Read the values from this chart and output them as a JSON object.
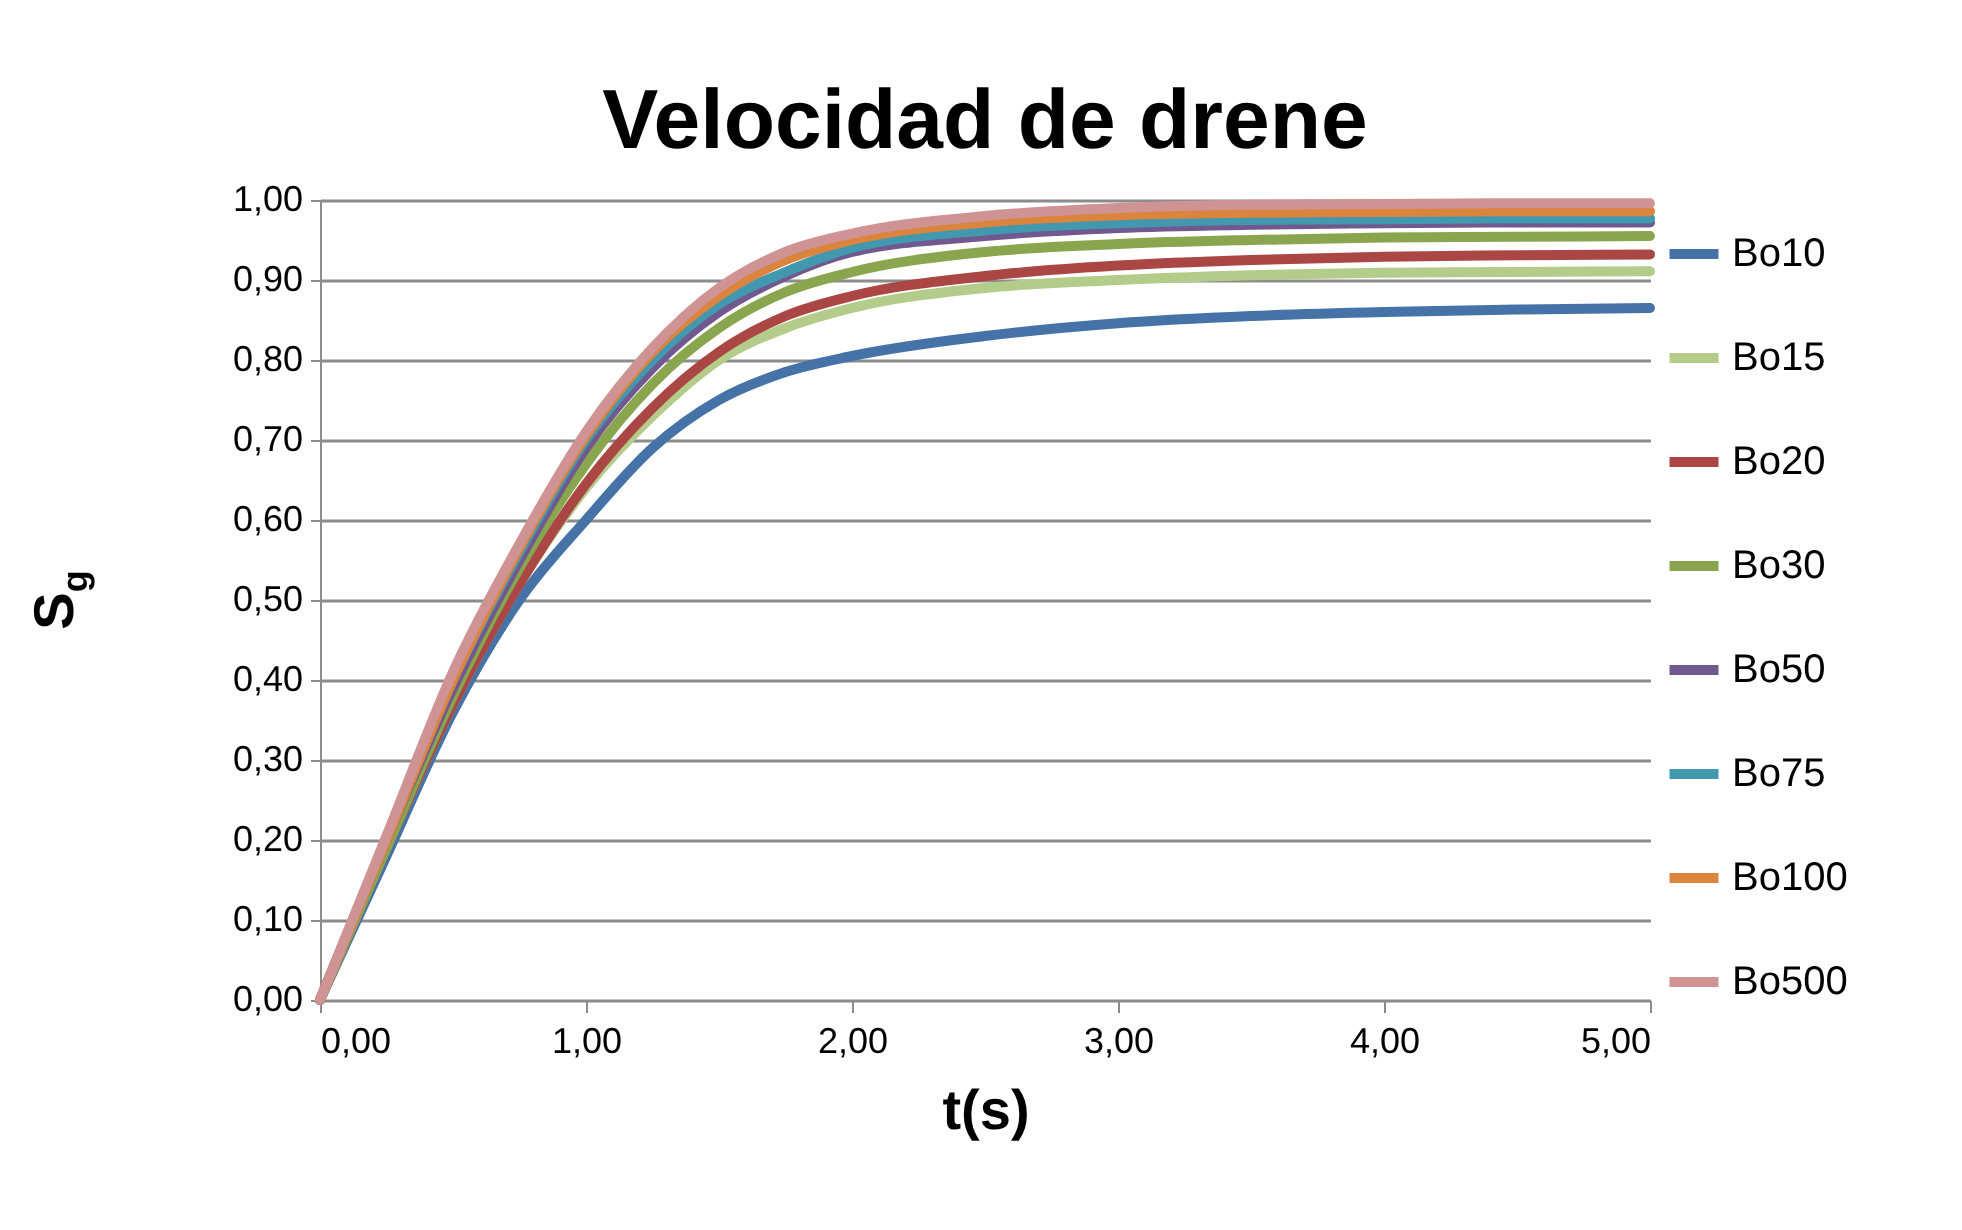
{
  "chart_data": {
    "type": "line",
    "title": "Velocidad de drene",
    "xlabel": "t(s)",
    "ylabel": "S$_{g}$",
    "x": [
      0,
      0.25,
      0.5,
      0.75,
      1,
      1.25,
      1.5,
      1.75,
      2,
      2.5,
      3,
      3.5,
      4,
      4.5,
      5
    ],
    "series": [
      {
        "name": "Bo10",
        "color": "#4572a7",
        "values": [
          0,
          0.18,
          0.36,
          0.5,
          0.6,
          0.69,
          0.75,
          0.785,
          0.805,
          0.83,
          0.846,
          0.855,
          0.86,
          0.863,
          0.865
        ]
      },
      {
        "name": "Bo15",
        "color": "#b3cc8a",
        "values": [
          0,
          0.19,
          0.37,
          0.52,
          0.64,
          0.73,
          0.8,
          0.84,
          0.865,
          0.89,
          0.9,
          0.906,
          0.909,
          0.91,
          0.911
        ]
      },
      {
        "name": "Bo20",
        "color": "#aa4643",
        "values": [
          0,
          0.19,
          0.37,
          0.52,
          0.645,
          0.74,
          0.81,
          0.855,
          0.88,
          0.905,
          0.918,
          0.925,
          0.929,
          0.931,
          0.932
        ]
      },
      {
        "name": "Bo30",
        "color": "#89a54e",
        "values": [
          0,
          0.19,
          0.38,
          0.54,
          0.67,
          0.77,
          0.84,
          0.885,
          0.91,
          0.935,
          0.945,
          0.95,
          0.953,
          0.954,
          0.955
        ]
      },
      {
        "name": "Bo50",
        "color": "#71588f",
        "values": [
          0,
          0.2,
          0.39,
          0.55,
          0.69,
          0.79,
          0.86,
          0.905,
          0.935,
          0.955,
          0.965,
          0.969,
          0.971,
          0.972,
          0.972
        ]
      },
      {
        "name": "Bo75",
        "color": "#4198af",
        "values": [
          0,
          0.2,
          0.4,
          0.56,
          0.7,
          0.8,
          0.87,
          0.91,
          0.94,
          0.962,
          0.971,
          0.975,
          0.976,
          0.977,
          0.977
        ]
      },
      {
        "name": "Bo100",
        "color": "#db843d",
        "values": [
          0,
          0.2,
          0.4,
          0.565,
          0.705,
          0.81,
          0.88,
          0.925,
          0.95,
          0.972,
          0.981,
          0.984,
          0.985,
          0.986,
          0.986
        ]
      },
      {
        "name": "Bo500",
        "color": "#d09393",
        "values": [
          0,
          0.205,
          0.41,
          0.57,
          0.71,
          0.815,
          0.89,
          0.935,
          0.958,
          0.98,
          0.99,
          0.994,
          0.995,
          0.996,
          0.996
        ]
      }
    ],
    "xlim": [
      0,
      5
    ],
    "xticks": [
      {
        "value": 0,
        "label": "0,00"
      },
      {
        "value": 1,
        "label": "1,00"
      },
      {
        "value": 2,
        "label": "2,00"
      },
      {
        "value": 3,
        "label": "3,00"
      },
      {
        "value": 4,
        "label": "4,00"
      },
      {
        "value": 5,
        "label": "5,00"
      }
    ],
    "ylim": [
      0,
      1
    ],
    "yticks": [
      {
        "value": 0,
        "label": "0,00"
      },
      {
        "value": 0.1,
        "label": "0,10"
      },
      {
        "value": 0.2,
        "label": "0,20"
      },
      {
        "value": 0.3,
        "label": "0,30"
      },
      {
        "value": 0.4,
        "label": "0,40"
      },
      {
        "value": 0.5,
        "label": "0,50"
      },
      {
        "value": 0.6,
        "label": "0,60"
      },
      {
        "value": 0.7,
        "label": "0,70"
      },
      {
        "value": 0.8,
        "label": "0,80"
      },
      {
        "value": 0.9,
        "label": "0,90"
      },
      {
        "value": 1,
        "label": "1,00"
      }
    ],
    "grid": "y",
    "legend": "right",
    "line_style": "solid"
  }
}
